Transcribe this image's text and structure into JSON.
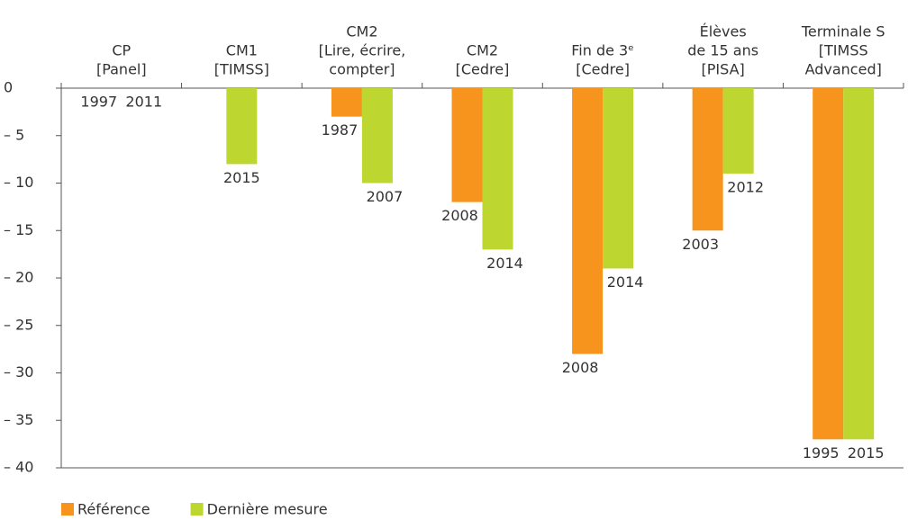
{
  "chart_data": {
    "type": "bar",
    "categories": [
      [
        "CP",
        "[Panel]"
      ],
      [
        "CM1",
        "[TIMSS]"
      ],
      [
        "CM2",
        "[Lire, écrire,",
        "compter]"
      ],
      [
        "CM2",
        "[Cedre]"
      ],
      [
        "Fin de 3ᵉ",
        "[Cedre]"
      ],
      [
        "Élèves",
        "de 15 ans",
        "[PISA]"
      ],
      [
        "Terminale S",
        "[TIMSS",
        "Advanced]"
      ]
    ],
    "series": [
      {
        "name": "Référence",
        "color": "#f7941d",
        "values": [
          0,
          null,
          -3,
          -12,
          -28,
          -15,
          -37
        ],
        "labels": [
          "1997",
          null,
          "1987",
          "2008",
          "2008",
          "2003",
          "1995"
        ]
      },
      {
        "name": "Dernière mesure",
        "color": "#bed630",
        "values": [
          0,
          -8,
          -10,
          -17,
          -19,
          -9,
          -37
        ],
        "labels": [
          "2011",
          "2015",
          "2007",
          "2014",
          "2014",
          "2012",
          "2015"
        ]
      }
    ],
    "ylim": [
      -40,
      0
    ],
    "yticks": [
      0,
      {
        "value": -5,
        "label": "– 5"
      },
      {
        "value": -10,
        "label": "– 10"
      },
      {
        "value": -15,
        "label": "– 15"
      },
      {
        "value": -20,
        "label": "– 20"
      },
      {
        "value": -25,
        "label": "– 25"
      },
      {
        "value": -30,
        "label": "– 30"
      },
      {
        "value": -35,
        "label": "– 35"
      },
      {
        "value": -40,
        "label": "– 40"
      }
    ],
    "legend": "bottom-left"
  }
}
